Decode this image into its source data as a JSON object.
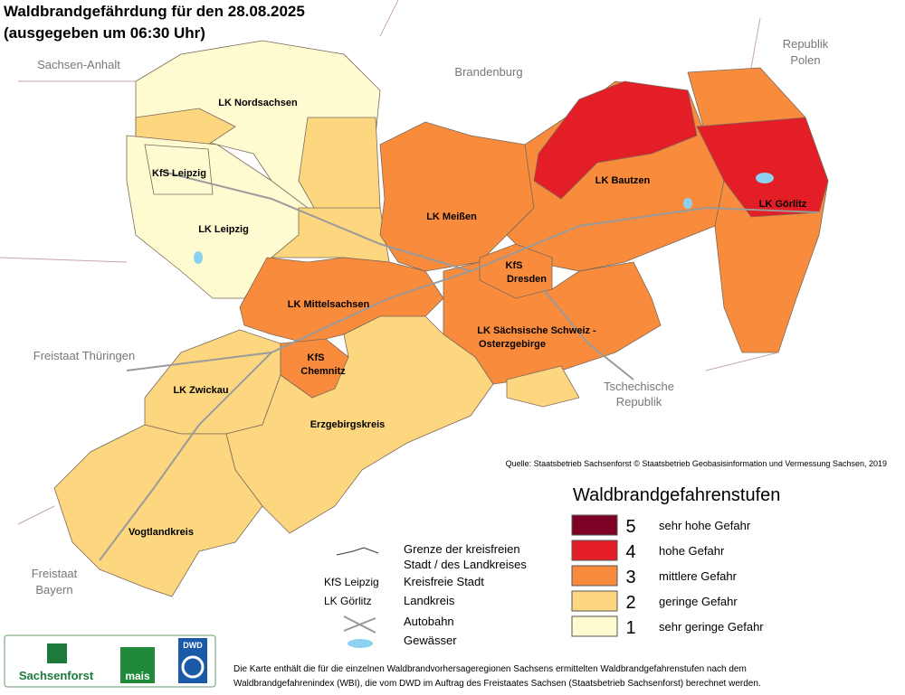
{
  "header": {
    "title": "Waldbrandgefährdung  für den  28.08.2025",
    "subtitle": "(ausgegeben um 06:30 Uhr)"
  },
  "neighbors": [
    "Sachsen-Anhalt",
    "Brandenburg",
    "Republik",
    "Polen",
    "Freistaat Thüringen",
    "Tschechische",
    "Republik",
    "Freistaat",
    "Bayern"
  ],
  "regions": [
    "LK Nordsachsen",
    "KfS Leipzig",
    "LK Leipzig",
    "LK Meißen",
    "LK Bautzen",
    "LK Görlitz",
    "KfS",
    "Dresden",
    "LK Mittelsachsen",
    "LK Sächsische Schweiz -",
    "Osterzgebirge",
    "KfS",
    "Chemnitz",
    "LK Zwickau",
    "Erzgebirgskreis",
    "Vogtlandkreis"
  ],
  "source": "Quelle: Staatsbetrieb Sachsenforst  © Staatsbetrieb Geobasisinformation und Vermessung Sachsen, 2019",
  "legend": {
    "title": "Waldbrandgefahrenstufen",
    "items": [
      {
        "level": 5,
        "label": "sehr hohe Gefahr",
        "color": "#7d0025"
      },
      {
        "level": 4,
        "label": "hohe Gefahr",
        "color": "#e41e26"
      },
      {
        "level": 3,
        "label": "mittlere Gefahr",
        "color": "#f98b3c"
      },
      {
        "level": 2,
        "label": "geringe Gefahr",
        "color": "#fdd680"
      },
      {
        "level": 1,
        "label": "sehr geringe Gefahr",
        "color": "#fefbd0"
      }
    ]
  },
  "symbols": [
    {
      "key": "",
      "label": "Grenze der kreisfreien"
    },
    {
      "key": "",
      "label": "Stadt / des Landkreises"
    },
    {
      "key": "KfS Leipzig",
      "label": "Kreisfreie Stadt"
    },
    {
      "key": "LK Görlitz",
      "label": "Landkreis"
    },
    {
      "key": "",
      "label": "Autobahn"
    },
    {
      "key": "",
      "label": "Gewässer"
    }
  ],
  "logos": [
    "Sachsenforst",
    "mais",
    "DWD"
  ],
  "footnote": [
    "Die Karte enthält die für die einzelnen Waldbrandvorhersageregionen Sachsens ermittelten Waldbrandgefahrenstufen nach dem",
    "Waldbrandgefahrenindex (WBI), die vom DWD im Auftrag des Freistaates Sachsen (Staatsbetrieb Sachsenforst) berechnet werden."
  ]
}
